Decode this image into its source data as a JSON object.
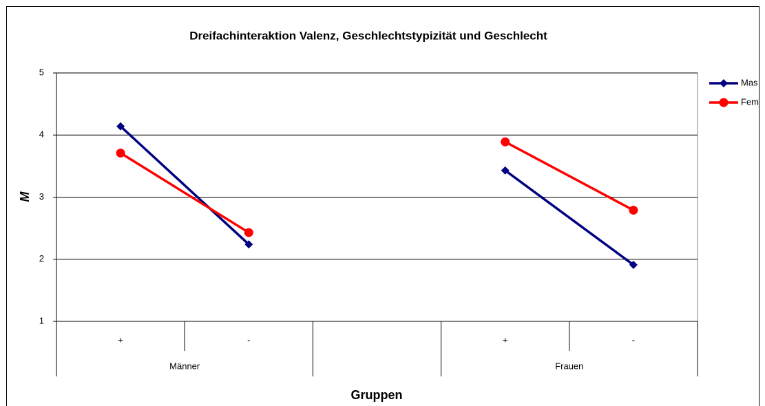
{
  "chart_data": {
    "type": "line",
    "title": "Dreifachinteraktion Valenz, Geschlechtstypizität und Geschlecht",
    "x_label": "Gruppen",
    "y_label": "M",
    "categories": [
      "+",
      "-",
      null,
      "+",
      "-"
    ],
    "category_groups": [
      "Männer",
      "Männer",
      null,
      "Frauen",
      "Frauen"
    ],
    "series": [
      {
        "name": "Mas",
        "color": "#000080",
        "marker": "diamond",
        "values": [
          4.14,
          2.24,
          null,
          3.43,
          1.91
        ]
      },
      {
        "name": "Fem",
        "color": "#ff0000",
        "marker": "circle",
        "values": [
          3.71,
          2.43,
          null,
          3.89,
          2.79
        ]
      }
    ],
    "ylim": [
      1,
      5
    ],
    "yticks": [
      1,
      2,
      3,
      4,
      5
    ],
    "grid": true
  }
}
